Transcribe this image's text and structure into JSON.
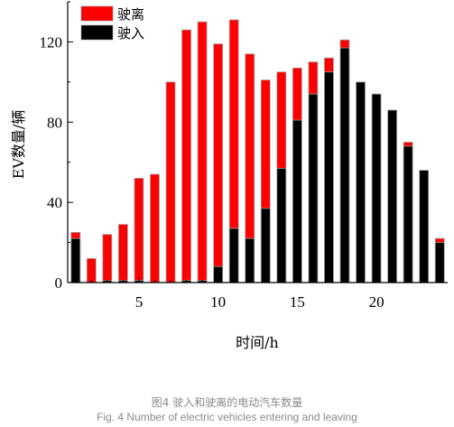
{
  "chart_data": {
    "type": "bar",
    "subtype": "overlapping",
    "xlabel": "时间/h",
    "ylabel": "EV数量/辆",
    "xlim": [
      0.5,
      24.5
    ],
    "ylim": [
      0,
      140
    ],
    "xticks": [
      5,
      10,
      15,
      20
    ],
    "yticks": [
      0,
      40,
      80,
      120
    ],
    "legend_position": "top-left",
    "categories": [
      1,
      2,
      3,
      4,
      5,
      6,
      7,
      8,
      9,
      10,
      11,
      12,
      13,
      14,
      15,
      16,
      17,
      18,
      19,
      20,
      21,
      22,
      23,
      24
    ],
    "series": [
      {
        "name": "驶离",
        "color": "#ff0000",
        "values": [
          25,
          12,
          24,
          29,
          52,
          54,
          100,
          126,
          130,
          119,
          131,
          114,
          101,
          105,
          107,
          110,
          112,
          121,
          0,
          0,
          0,
          70,
          0,
          22
        ]
      },
      {
        "name": "驶入",
        "color": "#000000",
        "values": [
          22,
          0,
          1,
          1,
          1,
          0,
          0,
          1,
          1,
          8,
          27,
          22,
          37,
          57,
          81,
          94,
          105,
          117,
          100,
          94,
          86,
          68,
          56,
          20
        ]
      }
    ]
  },
  "caption": {
    "zh": "图4 驶入和驶离的电动汽车数量",
    "en": "Fig. 4 Number of electric vehicles entering and leaving"
  }
}
